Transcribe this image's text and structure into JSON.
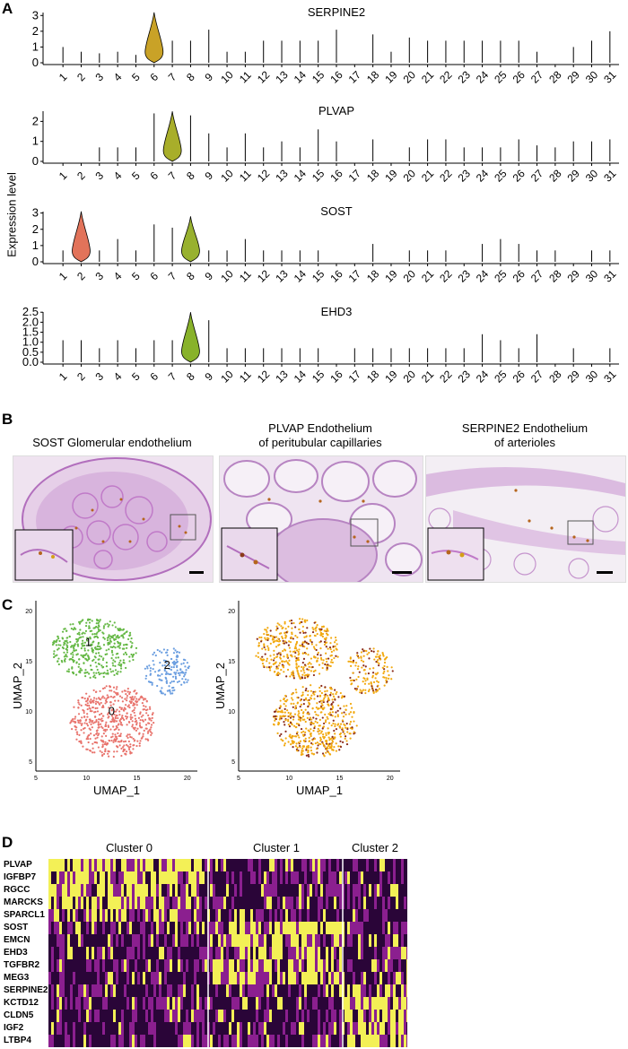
{
  "panels": {
    "a": "A",
    "b": "B",
    "c": "C",
    "d": "D"
  },
  "panel_a": {
    "ylabel": "Expression level",
    "clusters": [
      "1",
      "2",
      "3",
      "4",
      "5",
      "6",
      "7",
      "8",
      "9",
      "10",
      "11",
      "12",
      "13",
      "14",
      "15",
      "16",
      "17",
      "18",
      "19",
      "20",
      "21",
      "22",
      "23",
      "24",
      "25",
      "26",
      "27",
      "28",
      "29",
      "30",
      "31"
    ]
  },
  "chart_data": [
    {
      "type": "violin",
      "title": "SERPINE2",
      "yticks": [
        "0",
        "1",
        "2",
        "3"
      ],
      "ylim": [
        0,
        3.3
      ],
      "highlight": {
        "cluster": "6",
        "color": "#c9a227",
        "max": 3.2
      },
      "line_heights": [
        1.0,
        0.7,
        0.6,
        0.7,
        0.5,
        3.2,
        1.4,
        1.4,
        2.1,
        0.7,
        0.7,
        1.4,
        1.4,
        1.4,
        1.4,
        2.1,
        0.0,
        1.8,
        0.7,
        1.6,
        1.4,
        1.4,
        1.4,
        1.4,
        1.4,
        1.4,
        0.7,
        0.0,
        1.0,
        1.4,
        2.0
      ]
    },
    {
      "type": "violin",
      "title": "PLVAP",
      "yticks": [
        "0",
        "1",
        "2"
      ],
      "ylim": [
        0,
        2.6
      ],
      "highlight": {
        "cluster": "7",
        "color": "#a8ae2a",
        "max": 2.5
      },
      "line_heights": [
        0.0,
        0.0,
        0.7,
        0.7,
        0.7,
        2.4,
        2.5,
        2.3,
        1.4,
        0.7,
        1.4,
        0.7,
        1.0,
        0.7,
        1.6,
        1.0,
        0.0,
        1.1,
        0.0,
        0.7,
        1.1,
        1.1,
        0.7,
        0.7,
        0.7,
        1.1,
        0.8,
        0.7,
        1.0,
        1.0,
        1.1
      ]
    },
    {
      "type": "violin",
      "title": "SOST",
      "yticks": [
        "0",
        "1",
        "2",
        "3"
      ],
      "ylim": [
        0,
        3.2
      ],
      "highlight2": {
        "cluster": "2",
        "color": "#e2735a",
        "max": 3.1
      },
      "highlight": {
        "cluster": "8",
        "color": "#98b12f",
        "max": 2.8
      },
      "line_heights": [
        0.7,
        3.1,
        0.7,
        1.4,
        0.7,
        2.3,
        2.1,
        2.8,
        0.7,
        0.7,
        1.4,
        0.7,
        0.7,
        0.7,
        0.7,
        0.0,
        0.0,
        1.1,
        0.0,
        0.7,
        0.7,
        0.7,
        0.0,
        1.1,
        1.4,
        1.1,
        0.7,
        0.7,
        0.0,
        0.7,
        0.7
      ]
    },
    {
      "type": "violin",
      "title": "EHD3",
      "yticks": [
        "0.0",
        "0.5",
        "1.0",
        "1.5",
        "2.0",
        "2.5"
      ],
      "ylim": [
        0,
        2.6
      ],
      "highlight": {
        "cluster": "8",
        "color": "#88b22a",
        "max": 2.5
      },
      "line_heights": [
        1.1,
        1.1,
        0.7,
        1.1,
        0.7,
        1.1,
        1.1,
        2.5,
        2.1,
        0.7,
        0.7,
        0.7,
        0.7,
        0.7,
        0.7,
        0.0,
        0.7,
        0.7,
        0.7,
        0.7,
        0.7,
        0.7,
        0.7,
        1.4,
        1.1,
        0.7,
        1.4,
        0.0,
        0.7,
        0.0,
        0.7
      ]
    }
  ],
  "panel_b": {
    "captions": [
      [
        "SOST Glomerular endothelium"
      ],
      [
        "PLVAP Endothelium",
        "of peritubular capillaries"
      ],
      [
        "SERPINE2 Endothelium",
        "of arterioles"
      ]
    ]
  },
  "panel_c": {
    "left": {
      "xlabel": "UMAP_1",
      "ylabel": "UMAP_2",
      "xticks": [
        "5",
        "10",
        "15",
        "20"
      ],
      "yticks": [
        "5",
        "10",
        "15",
        "20"
      ],
      "cluster_labels": [
        "1",
        "2",
        "0"
      ],
      "colors": {
        "c0": "#e8736c",
        "c1": "#65b845",
        "c2": "#6b9ee0"
      }
    },
    "right": {
      "xlabel": "UMAP_1",
      "ylabel": "UMAP_2",
      "xticks": [
        "5",
        "10",
        "15",
        "20"
      ],
      "yticks": [
        "5",
        "10",
        "15",
        "20"
      ],
      "colors": {
        "low": "#f2a90f",
        "high": "#8a2b1a"
      }
    }
  },
  "panel_d": {
    "clusters": [
      "Cluster 0",
      "Cluster 1",
      "Cluster 2"
    ],
    "genes": [
      "PLVAP",
      "IGFBP7",
      "RGCC",
      "MARCKS",
      "SPARCL1",
      "SOST",
      "EMCN",
      "EHD3",
      "TGFBR2",
      "MEG3",
      "SERPINE2",
      "KCTD12",
      "CLDN5",
      "IGF2",
      "LTBP4"
    ],
    "colors": {
      "low": "#2a0538",
      "mid": "#8b1f8f",
      "high": "#f3f056"
    }
  }
}
